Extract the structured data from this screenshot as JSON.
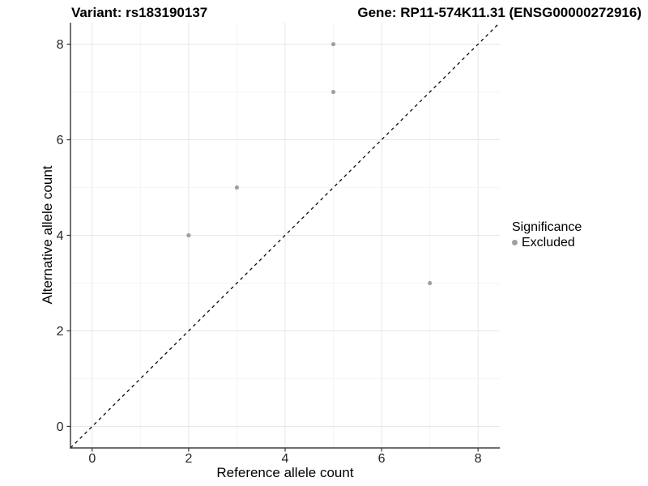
{
  "header": {
    "variant_title": "Variant: rs183190137",
    "gene_title": "Gene: RP11-574K11.31 (ENSG00000272916)"
  },
  "axes": {
    "x": {
      "label": "Reference allele count",
      "tick_labels": [
        "0",
        "2",
        "4",
        "6",
        "8"
      ]
    },
    "y": {
      "label": "Alternative allele count",
      "tick_labels": [
        "0",
        "2",
        "4",
        "6",
        "8"
      ]
    }
  },
  "legend": {
    "title": "Significance",
    "items": [
      {
        "label": "Excluded",
        "color": "#a0a0a0"
      }
    ]
  },
  "colors": {
    "point": "#a0a0a0",
    "grid_major": "#e7e7e7",
    "grid_minor": "#f2f2f2",
    "axis_line": "#404040",
    "tick_mark": "#333333",
    "tick_label": "#262626",
    "diagonal_line": "#0a0a0a",
    "background": "#ffffff"
  },
  "chart_data": {
    "type": "scatter",
    "title": "Variant: rs183190137 — Gene: RP11-574K11.31 (ENSG00000272916)",
    "xlabel": "Reference allele count",
    "ylabel": "Alternative allele count",
    "xlim": [
      -0.45,
      8.45
    ],
    "ylim": [
      -0.45,
      8.45
    ],
    "x_ticks": [
      0,
      2,
      4,
      6,
      8
    ],
    "y_ticks": [
      0,
      2,
      4,
      6,
      8
    ],
    "grid": true,
    "minor_grid": true,
    "legend_position": "right",
    "series": [
      {
        "name": "Excluded",
        "color": "#a0a0a0",
        "points": [
          {
            "x": 2,
            "y": 4
          },
          {
            "x": 3,
            "y": 5
          },
          {
            "x": 5,
            "y": 7
          },
          {
            "x": 5,
            "y": 8
          },
          {
            "x": 7,
            "y": 3
          }
        ]
      }
    ],
    "reference_line": {
      "type": "identity",
      "style": "dashed",
      "from": [
        -0.45,
        -0.45
      ],
      "to": [
        8.45,
        8.45
      ]
    }
  }
}
